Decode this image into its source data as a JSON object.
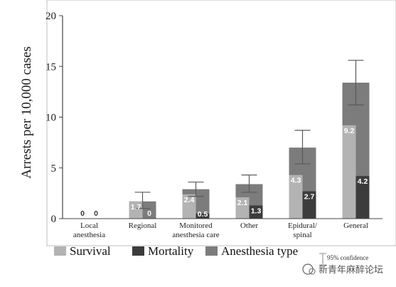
{
  "chart_data": {
    "type": "bar",
    "ylabel": "Arrests per 10,000 cases",
    "ylim": [
      0,
      20
    ],
    "yticks": [
      "0",
      "5",
      "10",
      "15",
      "20"
    ],
    "categories": [
      [
        "Local",
        "anesthesia"
      ],
      [
        "Regional"
      ],
      [
        "Monitored",
        "anesthesia care"
      ],
      [
        "Other"
      ],
      [
        "Epidural/",
        "spinal"
      ],
      [
        "General"
      ]
    ],
    "series": [
      {
        "name": "Survival",
        "values": [
          0,
          1.7,
          2.4,
          2.1,
          4.3,
          9.2
        ],
        "labels": [
          "0",
          "1.7",
          "2.4",
          "2.1",
          "4.3",
          "9.2"
        ],
        "color": "#b3b3b3"
      },
      {
        "name": "Mortality",
        "values": [
          0,
          0,
          0.5,
          1.3,
          2.7,
          4.2
        ],
        "labels": [
          "0",
          "0",
          "0.5",
          "1.3",
          "2.7",
          "4.2"
        ],
        "color": "#3c3c3c"
      },
      {
        "name": "Anesthesia type",
        "values": [
          0,
          1.7,
          2.9,
          3.4,
          7.0,
          13.4
        ],
        "color": "#7c7c7c"
      }
    ],
    "ci_upper": [
      0,
      2.6,
      3.6,
      4.3,
      8.7,
      15.6
    ],
    "ci_lower": [
      0,
      1.0,
      2.2,
      2.6,
      5.4,
      11.2
    ],
    "legend_placement": "bottom",
    "ci_legend_label": "95% confidence",
    "grid": false
  },
  "watermark": "新青年麻醉论坛"
}
